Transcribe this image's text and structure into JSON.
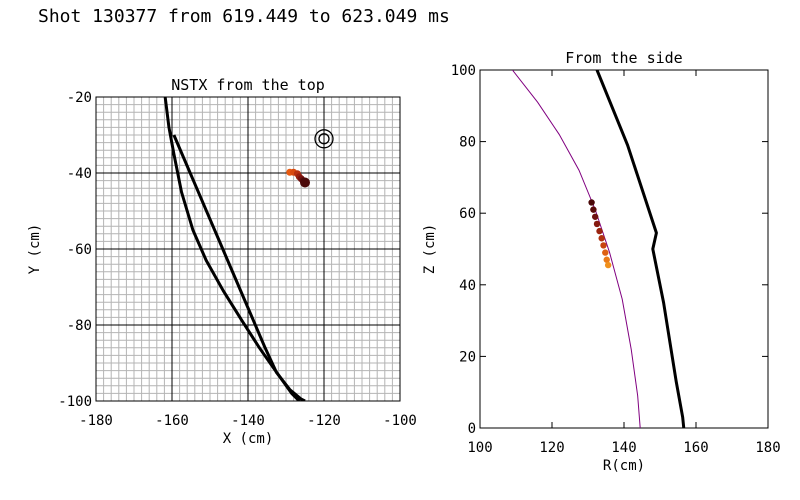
{
  "title": "Shot 130377 from 619.449 to 623.049 ms",
  "chart_data": [
    {
      "id": "top",
      "type": "line",
      "title": "NSTX from the top",
      "xlabel": "X (cm)",
      "ylabel": "Y (cm)",
      "xlim": [
        -180,
        -100
      ],
      "ylim": [
        -100,
        -20
      ],
      "xticks": [
        -180,
        -160,
        -140,
        -120,
        -100
      ],
      "yticks": [
        -100,
        -80,
        -60,
        -40,
        -20
      ],
      "fine_grid_step": 2,
      "series": [
        {
          "name": "wall-line-a",
          "color": "#000000",
          "x": [
            -161.8,
            -160.8,
            -159.5,
            -157.5,
            -154.5,
            -151.0,
            -146.5,
            -141.5,
            -137.0,
            -133.5,
            -131.0,
            -128.5,
            -126.5
          ],
          "y": [
            -20,
            -28,
            -35,
            -45,
            -55,
            -63,
            -71,
            -79,
            -86,
            -91,
            -94.5,
            -98,
            -100
          ]
        },
        {
          "name": "wall-line-b",
          "color": "#000000",
          "x": [
            -159.5,
            -156.5,
            -153.5,
            -150.5,
            -147.5,
            -144.5,
            -141.5,
            -138.5,
            -135.5,
            -132.5,
            -129.0,
            -126.0,
            -125.0
          ],
          "y": [
            -30,
            -37,
            -44,
            -51,
            -58,
            -65,
            -72,
            -79,
            -86,
            -92.5,
            -97,
            -99.5,
            -100
          ]
        }
      ],
      "target_marker": {
        "x": -120.0,
        "y": -31.0
      },
      "trajectory": [
        {
          "x": -129.0,
          "y": -39.8,
          "color": "#e85a10"
        },
        {
          "x": -128.0,
          "y": -39.8,
          "color": "#d84a10"
        },
        {
          "x": -127.0,
          "y": -40.2,
          "color": "#b83010"
        },
        {
          "x": -126.5,
          "y": -41.0,
          "color": "#982010"
        },
        {
          "x": -126.0,
          "y": -41.5,
          "color": "#7a1410"
        },
        {
          "x": -125.5,
          "y": -42.0,
          "color": "#5e0c0c"
        },
        {
          "x": -125.0,
          "y": -42.5,
          "color": "#4a0808"
        }
      ]
    },
    {
      "id": "side",
      "type": "line",
      "title": "From the side",
      "xlabel": "R(cm)",
      "ylabel": "Z (cm)",
      "xlim": [
        100,
        180
      ],
      "ylim": [
        0,
        100
      ],
      "xticks": [
        100,
        120,
        140,
        160,
        180
      ],
      "yticks": [
        0,
        20,
        40,
        60,
        80,
        100
      ],
      "separatrix": {
        "name": "boundary-arc",
        "color": "#800080",
        "r": [
          109.0,
          116.0,
          122.0,
          127.5,
          132.0,
          136.0,
          139.5,
          142.0,
          143.8,
          144.5
        ],
        "z": [
          100,
          91,
          82,
          72,
          61,
          49,
          36,
          22,
          9,
          0
        ]
      },
      "series": [
        {
          "name": "wall-profile",
          "color": "#000000",
          "r": [
            132.5,
            141.0,
            149.0,
            148.0,
            151.0,
            154.5,
            156.3,
            156.6
          ],
          "z": [
            100,
            79,
            54.5,
            50,
            35,
            13,
            3,
            0
          ]
        }
      ],
      "trajectory": [
        {
          "r": 131.0,
          "z": 63.0,
          "color": "#4a0808"
        },
        {
          "r": 131.5,
          "z": 61.0,
          "color": "#5a0a0a"
        },
        {
          "r": 132.0,
          "z": 59.0,
          "color": "#6e1010"
        },
        {
          "r": 132.5,
          "z": 57.0,
          "color": "#861a10"
        },
        {
          "r": 133.2,
          "z": 55.0,
          "color": "#9a2410"
        },
        {
          "r": 133.8,
          "z": 53.0,
          "color": "#b03210"
        },
        {
          "r": 134.3,
          "z": 51.0,
          "color": "#c84410"
        },
        {
          "r": 134.8,
          "z": 49.0,
          "color": "#de6012"
        },
        {
          "r": 135.2,
          "z": 47.0,
          "color": "#ea7a18"
        },
        {
          "r": 135.6,
          "z": 45.5,
          "color": "#f0901c"
        }
      ]
    }
  ]
}
